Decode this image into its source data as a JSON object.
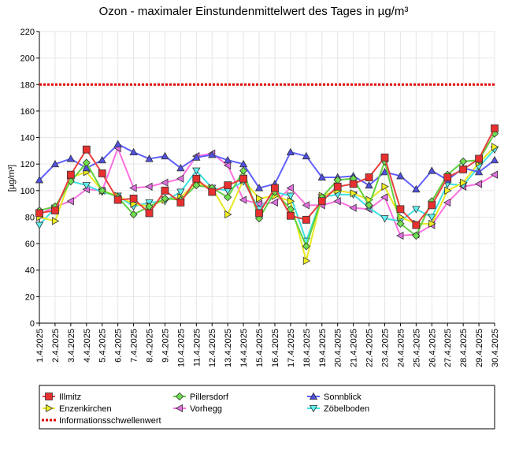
{
  "chart_data": {
    "type": "line",
    "title": "Ozon -  maximaler Einstundenmittelwert des Tages in µg/m³",
    "ylabel": "[µg/m³]",
    "xlabel": "",
    "ylim": [
      0,
      220
    ],
    "yticks": [
      0,
      20,
      40,
      60,
      80,
      100,
      120,
      140,
      160,
      180,
      200,
      220
    ],
    "grid": true,
    "legend_position": "bottom",
    "categories": [
      "1.4.2025",
      "2.4.2025",
      "3.4.2025",
      "4.4.2025",
      "5.4.2025",
      "6.4.2025",
      "7.4.2025",
      "8.4.2025",
      "9.4.2025",
      "10.4.2025",
      "11.4.2025",
      "12.4.2025",
      "13.4.2025",
      "14.4.2025",
      "15.4.2025",
      "16.4.2025",
      "17.4.2025",
      "18.4.2025",
      "19.4.2025",
      "20.4.2025",
      "21.4.2025",
      "22.4.2025",
      "23.4.2025",
      "24.4.2025",
      "25.4.2025",
      "26.4.2025",
      "27.4.2025",
      "28.4.2025",
      "29.4.2025",
      "30.4.2025"
    ],
    "threshold": {
      "name": "Informationsschwellenwert",
      "value": 180,
      "color": "#e00000"
    },
    "series": [
      {
        "name": "Illmitz",
        "color": "#e84040",
        "marker": "square",
        "fill": "#e83030",
        "values": [
          83,
          85,
          112,
          131,
          113,
          93,
          94,
          83,
          100,
          91,
          109,
          99,
          104,
          109,
          83,
          102,
          81,
          78,
          92,
          103,
          105,
          110,
          125,
          86,
          74,
          89,
          110,
          116,
          124,
          147
        ]
      },
      {
        "name": "Pillersdorf",
        "color": "#60d040",
        "marker": "diamond",
        "fill": "#70e050",
        "values": [
          85,
          88,
          107,
          121,
          100,
          95,
          82,
          88,
          94,
          93,
          104,
          102,
          95,
          115,
          79,
          99,
          86,
          58,
          95,
          108,
          109,
          89,
          122,
          75,
          66,
          92,
          112,
          122,
          123,
          143
        ]
      },
      {
        "name": "Sonnblick",
        "color": "#6060ff",
        "marker": "triangle-up",
        "fill": "#5050e0",
        "values": [
          108,
          120,
          124,
          117,
          123,
          135,
          129,
          124,
          126,
          117,
          125,
          127,
          123,
          120,
          102,
          105,
          129,
          126,
          110,
          110,
          111,
          104,
          114,
          111,
          101,
          115,
          108,
          117,
          114,
          123
        ]
      },
      {
        "name": "Enzenkirchen",
        "color": "#e8e820",
        "marker": "triangle-right",
        "fill": "#f0f020",
        "values": [
          80,
          77,
          110,
          114,
          100,
          96,
          90,
          88,
          93,
          95,
          106,
          102,
          82,
          108,
          94,
          96,
          92,
          47,
          96,
          100,
          98,
          93,
          103,
          80,
          75,
          75,
          100,
          106,
          121,
          133
        ]
      },
      {
        "name": "Vorhegg",
        "color": "#ff70e0",
        "marker": "triangle-left",
        "fill": "#e070e0",
        "values": [
          82,
          88,
          92,
          101,
          100,
          132,
          102,
          103,
          106,
          109,
          126,
          128,
          119,
          93,
          90,
          91,
          102,
          89,
          89,
          92,
          87,
          86,
          95,
          66,
          67,
          74,
          91,
          103,
          105,
          112
        ]
      },
      {
        "name": "Zöbelboden",
        "color": "#40e0e0",
        "marker": "triangle-down",
        "fill": "#60f0f0",
        "values": [
          74,
          87,
          107,
          104,
          99,
          96,
          88,
          91,
          92,
          99,
          115,
          102,
          100,
          107,
          86,
          99,
          96,
          62,
          95,
          97,
          97,
          87,
          79,
          77,
          86,
          80,
          105,
          104,
          118,
          131
        ]
      }
    ]
  }
}
